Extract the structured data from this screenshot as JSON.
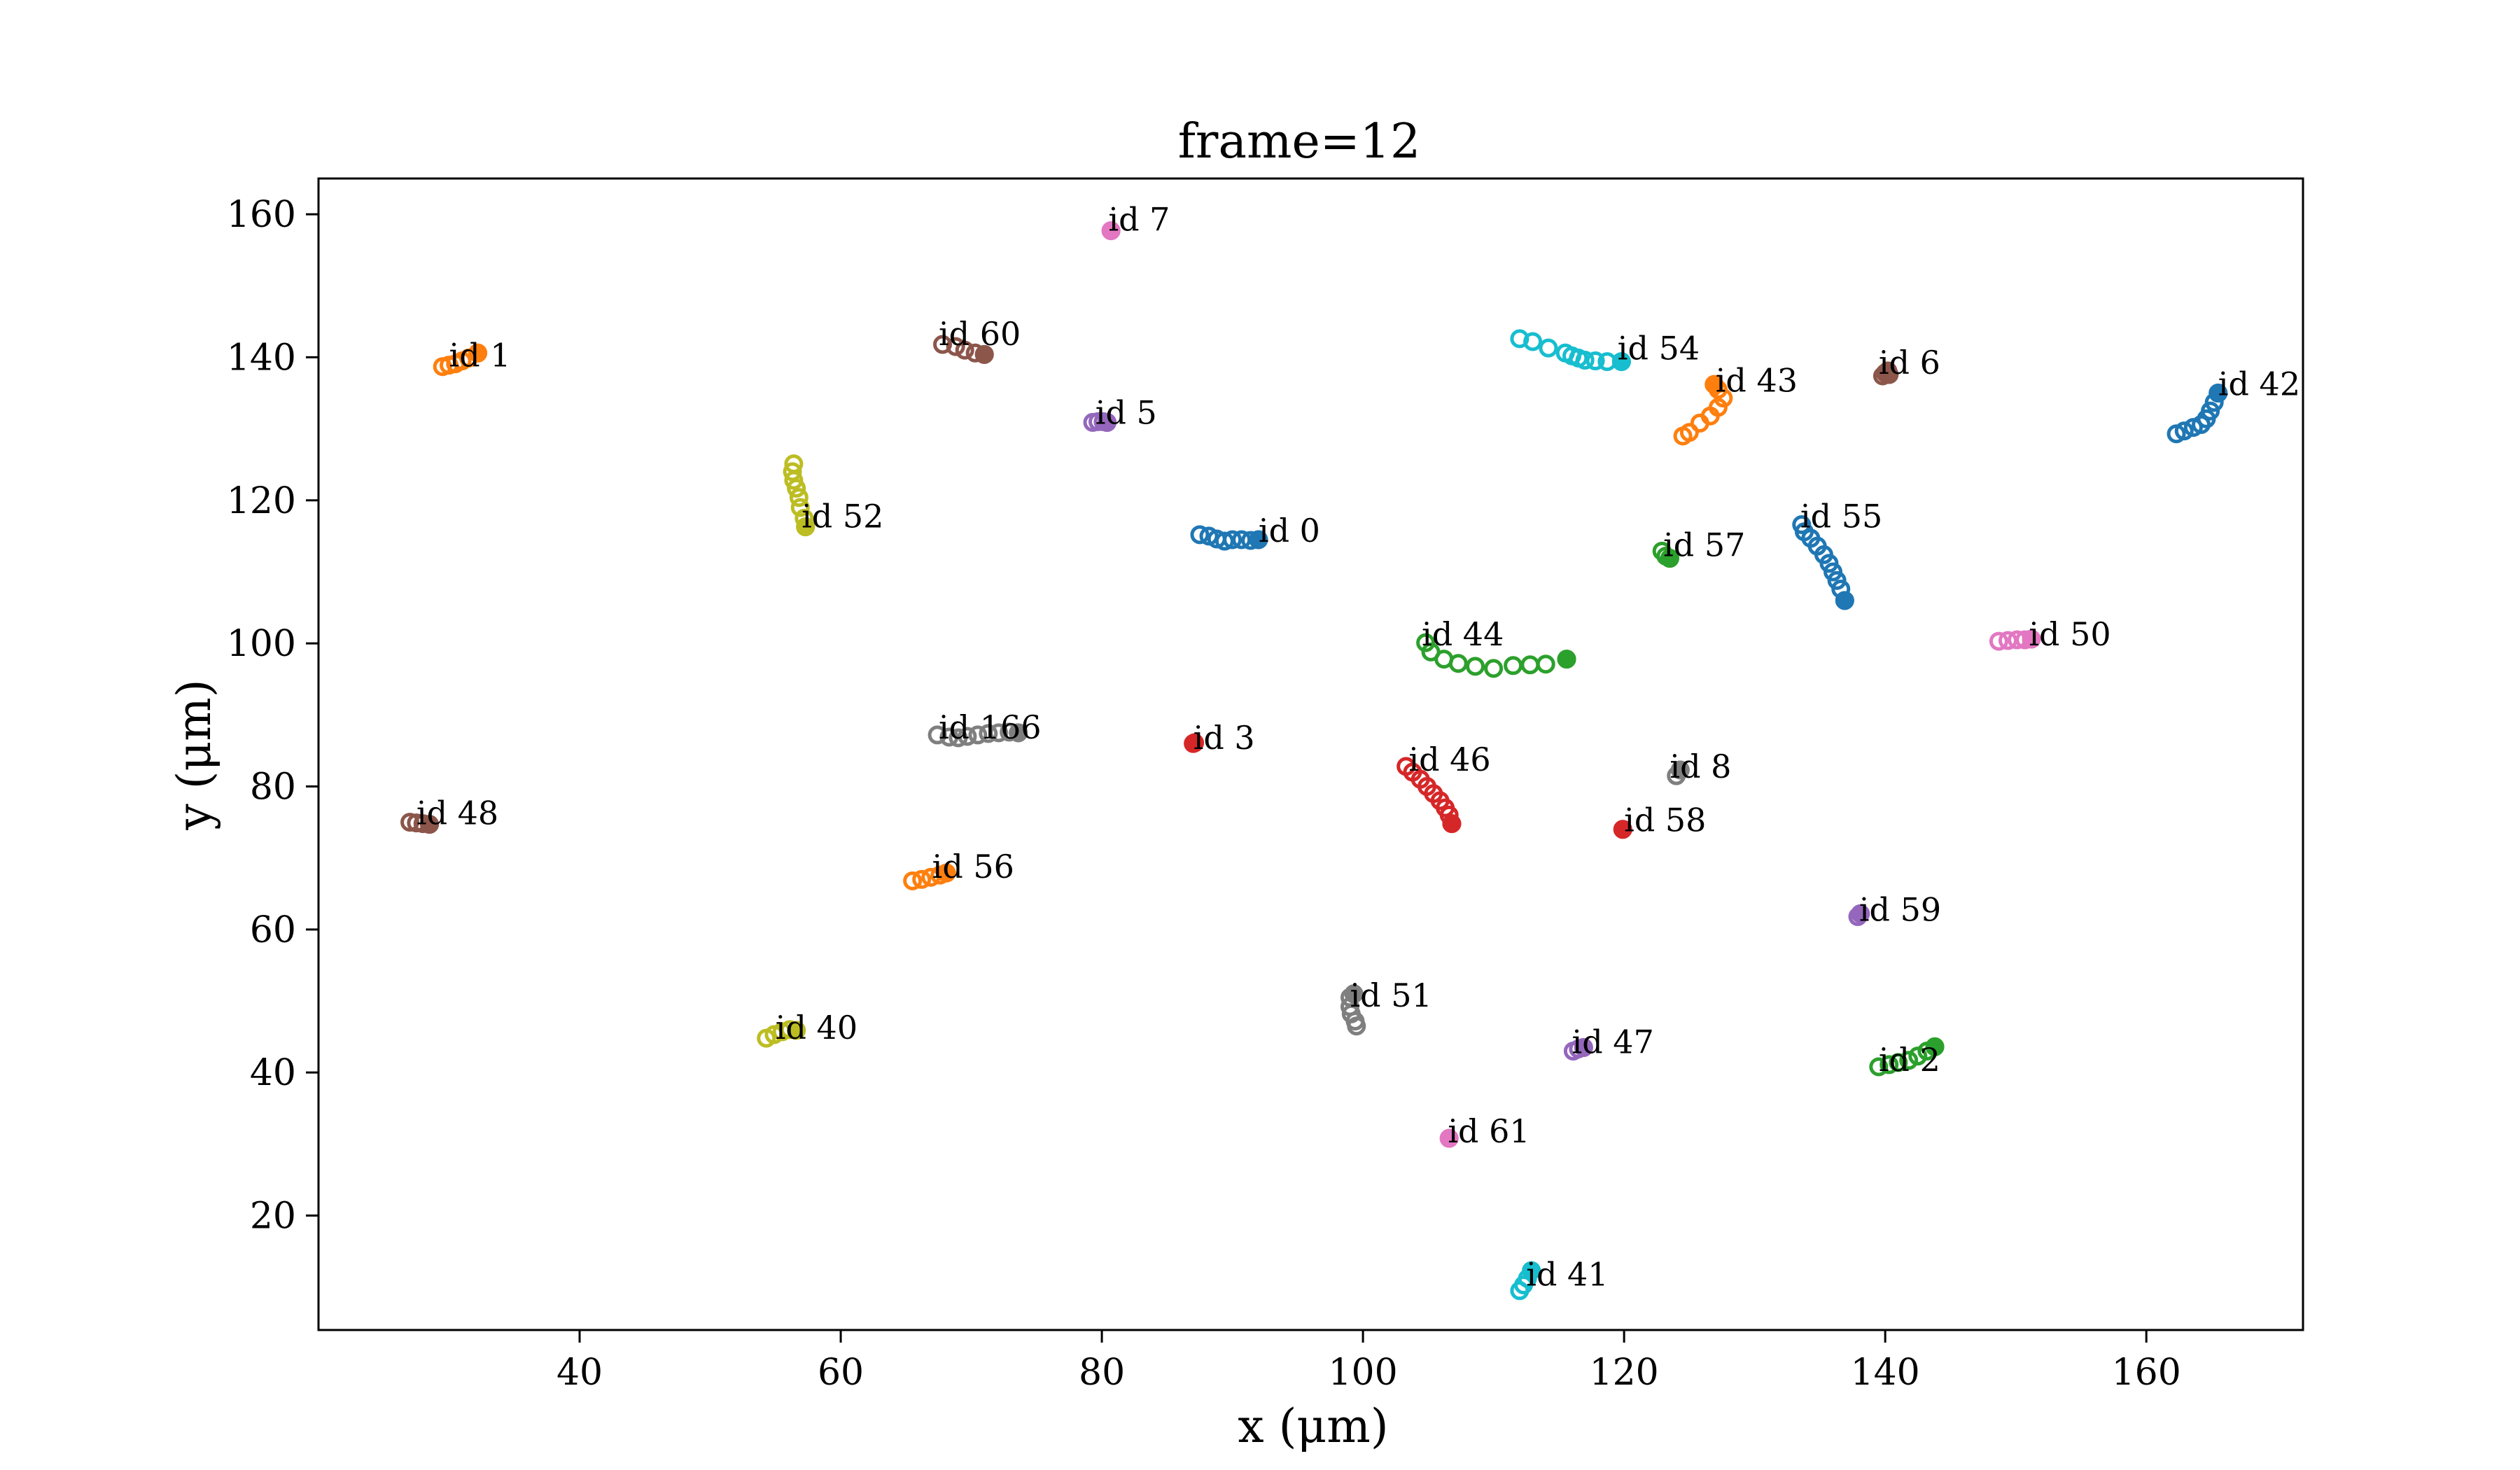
{
  "chart_data": {
    "type": "scatter",
    "title": "frame=12",
    "xlabel": "x (μm)",
    "ylabel": "y (μm)",
    "xlim": [
      20,
      172
    ],
    "ylim": [
      4,
      165
    ],
    "xticks": [
      40,
      60,
      80,
      100,
      120,
      140,
      160
    ],
    "yticks": [
      20,
      40,
      60,
      80,
      100,
      120,
      140,
      160
    ],
    "grid": false,
    "series": [
      {
        "name": "id 0",
        "color": "#1f77b4",
        "label_at": [
          92,
          115
        ],
        "points": [
          [
            87.5,
            115.2
          ],
          [
            88.2,
            115.0
          ],
          [
            88.8,
            114.6
          ],
          [
            89.4,
            114.3
          ],
          [
            90.0,
            114.5
          ],
          [
            90.7,
            114.5
          ],
          [
            91.4,
            114.4
          ],
          [
            92.0,
            114.5
          ]
        ]
      },
      {
        "name": "id 1",
        "color": "#ff7f0e",
        "label_at": [
          30,
          139.5
        ],
        "points": [
          [
            29.5,
            138.7
          ],
          [
            30.0,
            138.9
          ],
          [
            30.5,
            139.1
          ],
          [
            31.0,
            139.5
          ],
          [
            31.5,
            139.9
          ],
          [
            32.2,
            140.6
          ]
        ]
      },
      {
        "name": "id 2",
        "color": "#2ca02c",
        "label_at": [
          139.5,
          41
        ],
        "points": [
          [
            139.5,
            40.8
          ],
          [
            140.3,
            41.1
          ],
          [
            141.0,
            41.4
          ],
          [
            141.8,
            41.7
          ],
          [
            142.5,
            42.3
          ],
          [
            143.2,
            43.0
          ],
          [
            143.8,
            43.6
          ]
        ]
      },
      {
        "name": "id 3",
        "color": "#d62728",
        "label_at": [
          87,
          86
        ],
        "points": [
          [
            87.0,
            86.0
          ],
          [
            87.1,
            86.1
          ]
        ]
      },
      {
        "name": "id 5",
        "color": "#9467bd",
        "label_at": [
          79.5,
          131.5
        ],
        "points": [
          [
            79.3,
            130.9
          ],
          [
            79.7,
            131.0
          ],
          [
            80.1,
            131.0
          ],
          [
            80.4,
            130.9
          ]
        ]
      },
      {
        "name": "id 6",
        "color": "#8c564b",
        "label_at": [
          139.5,
          138.5
        ],
        "points": [
          [
            139.8,
            137.4
          ],
          [
            140.0,
            137.8
          ],
          [
            140.2,
            138.1
          ],
          [
            140.3,
            137.6
          ]
        ]
      },
      {
        "name": "id 7",
        "color": "#e377c2",
        "label_at": [
          80.5,
          158.5
        ],
        "points": [
          [
            80.7,
            157.7
          ]
        ]
      },
      {
        "name": "id 8",
        "color": "#7f7f7f",
        "label_at": [
          123.5,
          82
        ],
        "points": [
          [
            124.0,
            81.5
          ],
          [
            124.3,
            82.3
          ]
        ]
      },
      {
        "name": "id 40",
        "color": "#bcbd22",
        "label_at": [
          55,
          45.5
        ],
        "points": [
          [
            54.3,
            44.8
          ],
          [
            54.9,
            45.3
          ],
          [
            55.5,
            45.7
          ],
          [
            56.1,
            46.0
          ],
          [
            56.6,
            45.9
          ]
        ]
      },
      {
        "name": "id 41",
        "color": "#17becf",
        "label_at": [
          112.5,
          11
        ],
        "points": [
          [
            112.0,
            9.5
          ],
          [
            112.3,
            10.3
          ],
          [
            112.6,
            11.2
          ],
          [
            112.9,
            12.3
          ]
        ]
      },
      {
        "name": "id 42",
        "color": "#1f77b4",
        "label_at": [
          165.5,
          135.5
        ],
        "points": [
          [
            162.3,
            129.3
          ],
          [
            162.9,
            129.7
          ],
          [
            163.6,
            130.2
          ],
          [
            164.2,
            130.6
          ],
          [
            164.6,
            131.4
          ],
          [
            164.9,
            132.5
          ],
          [
            165.2,
            133.7
          ],
          [
            165.5,
            135.0
          ]
        ]
      },
      {
        "name": "id 43",
        "color": "#ff7f0e",
        "label_at": [
          127,
          136
        ],
        "points": [
          [
            124.5,
            129.0
          ],
          [
            125.0,
            129.5
          ],
          [
            125.8,
            130.8
          ],
          [
            126.6,
            131.8
          ],
          [
            127.2,
            133.0
          ],
          [
            127.6,
            134.3
          ],
          [
            127.2,
            135.5
          ],
          [
            126.9,
            136.2
          ]
        ]
      },
      {
        "name": "id 44",
        "color": "#2ca02c",
        "label_at": [
          104.5,
          100.5
        ],
        "points": [
          [
            104.8,
            100.1
          ],
          [
            105.2,
            98.8
          ],
          [
            106.2,
            97.8
          ],
          [
            107.3,
            97.2
          ],
          [
            108.6,
            96.8
          ],
          [
            110.0,
            96.5
          ],
          [
            111.5,
            96.9
          ],
          [
            112.8,
            97.0
          ],
          [
            114.0,
            97.1
          ],
          [
            115.6,
            97.8
          ]
        ]
      },
      {
        "name": "id 46",
        "color": "#d62728",
        "label_at": [
          103.5,
          83
        ],
        "points": [
          [
            103.3,
            82.8
          ],
          [
            103.8,
            82.0
          ],
          [
            104.4,
            81.0
          ],
          [
            104.9,
            80.0
          ],
          [
            105.4,
            79.0
          ],
          [
            105.9,
            78.0
          ],
          [
            106.3,
            77.0
          ],
          [
            106.6,
            76.0
          ],
          [
            106.8,
            74.8
          ]
        ]
      },
      {
        "name": "id 47",
        "color": "#9467bd",
        "label_at": [
          116,
          43.5
        ],
        "points": [
          [
            116.1,
            43.0
          ],
          [
            116.5,
            43.3
          ],
          [
            116.9,
            43.5
          ]
        ]
      },
      {
        "name": "id 48",
        "color": "#8c564b",
        "label_at": [
          27.5,
          75.5
        ],
        "points": [
          [
            27.0,
            75.0
          ],
          [
            27.5,
            74.9
          ],
          [
            28.0,
            74.8
          ],
          [
            28.5,
            74.7
          ]
        ]
      },
      {
        "name": "id 50",
        "color": "#e377c2",
        "label_at": [
          151,
          100.5
        ],
        "points": [
          [
            148.7,
            100.3
          ],
          [
            149.4,
            100.4
          ],
          [
            150.1,
            100.5
          ],
          [
            150.7,
            100.5
          ],
          [
            151.2,
            100.6
          ]
        ]
      },
      {
        "name": "id 51",
        "color": "#7f7f7f",
        "label_at": [
          99,
          50
        ],
        "points": [
          [
            99.0,
            50.5
          ],
          [
            99.0,
            49.2
          ],
          [
            99.1,
            48.2
          ],
          [
            99.4,
            47.2
          ],
          [
            99.5,
            46.5
          ],
          [
            99.3,
            51.0
          ]
        ]
      },
      {
        "name": "id 52",
        "color": "#bcbd22",
        "label_at": [
          57,
          117
        ],
        "points": [
          [
            56.4,
            125.1
          ],
          [
            56.3,
            124.0
          ],
          [
            56.4,
            122.8
          ],
          [
            56.6,
            121.7
          ],
          [
            56.8,
            120.4
          ],
          [
            56.9,
            119.0
          ],
          [
            57.2,
            117.5
          ],
          [
            57.3,
            116.3
          ]
        ]
      },
      {
        "name": "id 54",
        "color": "#17becf",
        "label_at": [
          119.5,
          140.5
        ],
        "points": [
          [
            112.0,
            142.6
          ],
          [
            113.0,
            142.2
          ],
          [
            114.2,
            141.3
          ],
          [
            115.5,
            140.6
          ],
          [
            116.0,
            140.2
          ],
          [
            116.5,
            139.9
          ],
          [
            117.0,
            139.6
          ],
          [
            117.8,
            139.5
          ],
          [
            118.7,
            139.4
          ],
          [
            119.8,
            139.4
          ]
        ]
      },
      {
        "name": "id 55",
        "color": "#1f77b4",
        "label_at": [
          133.5,
          117
        ],
        "points": [
          [
            133.6,
            116.6
          ],
          [
            133.8,
            115.6
          ],
          [
            134.3,
            114.7
          ],
          [
            134.8,
            113.6
          ],
          [
            135.3,
            112.4
          ],
          [
            135.7,
            111.2
          ],
          [
            136.0,
            110.0
          ],
          [
            136.3,
            108.8
          ],
          [
            136.6,
            107.6
          ],
          [
            136.9,
            106.0
          ]
        ]
      },
      {
        "name": "id 56",
        "color": "#ff7f0e",
        "label_at": [
          67,
          68
        ],
        "points": [
          [
            65.5,
            66.8
          ],
          [
            66.2,
            67.0
          ],
          [
            66.9,
            67.3
          ],
          [
            67.6,
            67.6
          ],
          [
            68.1,
            67.9
          ]
        ]
      },
      {
        "name": "id 57",
        "color": "#2ca02c",
        "label_at": [
          123,
          113
        ],
        "points": [
          [
            122.9,
            112.9
          ],
          [
            123.2,
            112.2
          ],
          [
            123.5,
            111.9
          ]
        ]
      },
      {
        "name": "id 58",
        "color": "#d62728",
        "label_at": [
          120,
          74.5
        ],
        "points": [
          [
            119.9,
            74.0
          ]
        ]
      },
      {
        "name": "id 59",
        "color": "#9467bd",
        "label_at": [
          138,
          62
        ],
        "points": [
          [
            137.9,
            61.8
          ],
          [
            138.1,
            62.2
          ]
        ]
      },
      {
        "name": "id 60",
        "color": "#8c564b",
        "label_at": [
          67.5,
          142.5
        ],
        "points": [
          [
            67.8,
            141.8
          ],
          [
            68.8,
            141.5
          ],
          [
            69.5,
            141.0
          ],
          [
            70.3,
            140.6
          ],
          [
            71.0,
            140.4
          ]
        ]
      },
      {
        "name": "id 61",
        "color": "#e377c2",
        "label_at": [
          106.5,
          31
        ],
        "points": [
          [
            106.6,
            30.8
          ]
        ]
      },
      {
        "name": "id 166",
        "color": "#7f7f7f",
        "label_at": [
          67.5,
          87.5
        ],
        "points": [
          [
            67.4,
            87.2
          ],
          [
            68.3,
            86.9
          ],
          [
            69.0,
            86.8
          ],
          [
            69.7,
            87.0
          ],
          [
            70.5,
            87.2
          ],
          [
            71.3,
            87.4
          ],
          [
            72.1,
            87.5
          ],
          [
            72.9,
            87.6
          ],
          [
            73.6,
            87.5
          ]
        ]
      }
    ]
  }
}
